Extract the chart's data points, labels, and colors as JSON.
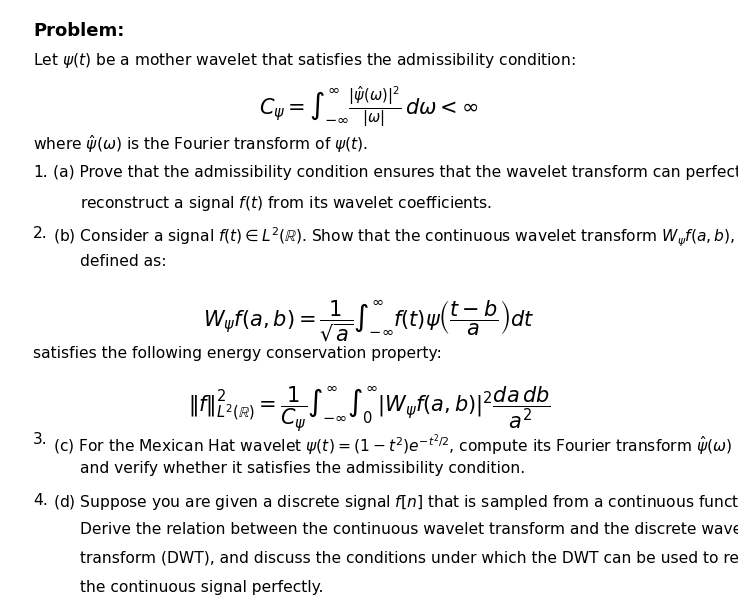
{
  "background_color": "#ffffff",
  "text_color": "#000000",
  "title": "Problem:",
  "title_fontsize": 13,
  "body_fontsize": 11.2,
  "math_fontsize": 13,
  "fig_width": 7.38,
  "fig_height": 6.16,
  "intro_line": "Let $\\psi(t)$ be a mother wavelet that satisfies the admissibility condition:",
  "main_formula": "$C_{\\psi} = \\int_{-\\infty}^{\\infty} \\frac{|\\hat{\\psi}(\\omega)|^2}{|\\omega|}\\, d\\omega < \\infty$",
  "where_line": "where $\\hat{\\psi}(\\omega)$ is the Fourier transform of $\\psi(t)$.",
  "item1_line1": "(a) Prove that the admissibility condition ensures that the wavelet transform can perfectly",
  "item1_line2": "reconstruct a signal $f(t)$ from its wavelet coefficients.",
  "item2_line1": "(b) Consider a signal $f(t) \\in L^2(\\mathbb{R})$. Show that the continuous wavelet transform $W_{\\psi}f(a,b)$,",
  "item2_line2": "defined as:",
  "item2_formula": "$W_{\\psi}f(a,b) = \\dfrac{1}{\\sqrt{a}} \\int_{-\\infty}^{\\infty} f(t)\\psi\\left(\\dfrac{t-b}{a}\\right) dt$",
  "item2_after": "satisfies the following energy conservation property:",
  "energy_formula": "$\\|f\\|^2_{L^2(\\mathbb{R})} = \\dfrac{1}{C_{\\psi}} \\int_{-\\infty}^{\\infty}\\int_{0}^{\\infty} |W_{\\psi}f(a,b)|^2 \\dfrac{da\\, db}{a^2}$",
  "item3_line1": "(c) For the Mexican Hat wavelet $\\psi(t) = (1-t^2)e^{-t^2/2}$, compute its Fourier transform $\\hat{\\psi}(\\omega)$",
  "item3_line2": "and verify whether it satisfies the admissibility condition.",
  "item4_line1": "(d) Suppose you are given a discrete signal $f[n]$ that is sampled from a continuous function.",
  "item4_line2": "Derive the relation between the continuous wavelet transform and the discrete wavelet",
  "item4_line3": "transform (DWT), and discuss the conditions under which the DWT can be used to reconstruct",
  "item4_line4": "the continuous signal perfectly."
}
